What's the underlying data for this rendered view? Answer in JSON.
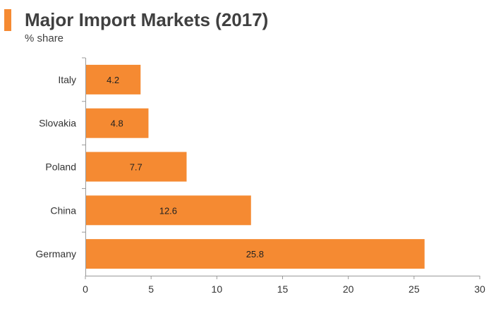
{
  "chart_data": {
    "type": "bar",
    "orientation": "horizontal",
    "title": "Major Import Markets (2017)",
    "subtitle": "% share",
    "categories": [
      "Italy",
      "Slovakia",
      "Poland",
      "China",
      "Germany"
    ],
    "values": [
      4.2,
      4.8,
      7.7,
      12.6,
      25.8
    ],
    "data_labels": [
      "4.2",
      "4.8",
      "7.7",
      "12.6",
      "25.8"
    ],
    "xlim": [
      0,
      30
    ],
    "xticks": [
      "0",
      "5",
      "10",
      "15",
      "20",
      "25",
      "30"
    ],
    "xlabel": "",
    "ylabel": "",
    "grid": false,
    "legend": "none",
    "bar_color": "#F58A32",
    "accent_color": "#F58A32"
  }
}
